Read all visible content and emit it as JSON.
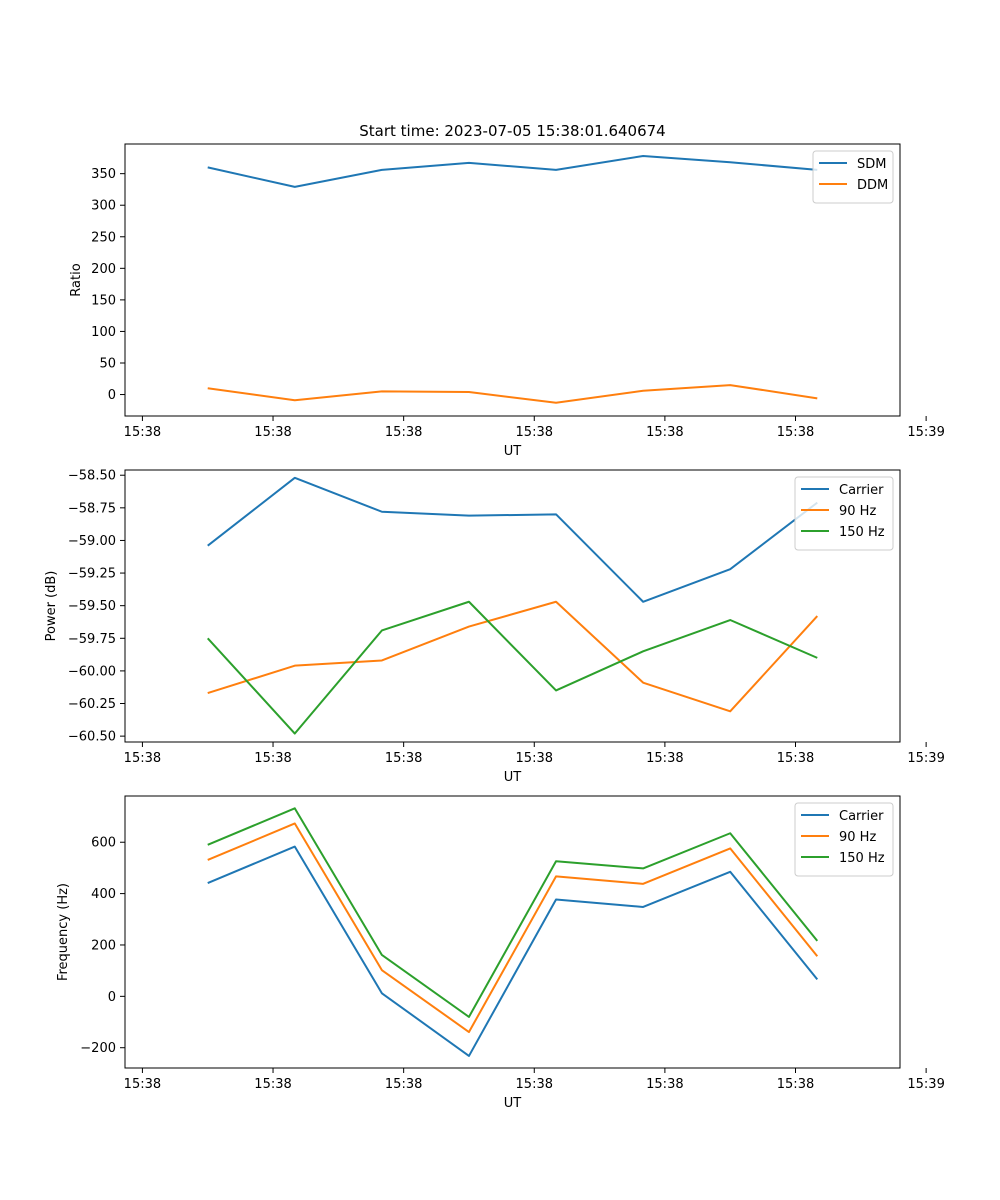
{
  "figure_title": "Start time: 2023-07-05 15:38:01.640674",
  "chart_data": [
    {
      "type": "line",
      "xlabel": "UT",
      "ylabel": "Ratio",
      "x_tick_labels": [
        "15:38",
        "15:38",
        "15:38",
        "15:38",
        "15:38",
        "15:38",
        "15:39"
      ],
      "y_ticks": [
        0,
        50,
        100,
        150,
        200,
        250,
        300,
        350
      ],
      "y_tick_labels": [
        "0",
        "50",
        "100",
        "150",
        "200",
        "250",
        "300",
        "350"
      ],
      "ylim": [
        -34,
        397
      ],
      "x": [
        1,
        2,
        3,
        4,
        5,
        6,
        7,
        8
      ],
      "xlim": [
        0.05,
        8.95
      ],
      "x_tick_positions": [
        0.25,
        1.75,
        3.25,
        4.75,
        6.25,
        7.75,
        9.25
      ],
      "legend_loc": "upper right",
      "series": [
        {
          "name": "SDM",
          "color": "#1f77b4",
          "values": [
            360,
            329,
            356,
            367,
            356,
            378,
            368,
            356
          ]
        },
        {
          "name": "DDM",
          "color": "#ff7f0e",
          "values": [
            10,
            -9,
            5,
            4,
            -13,
            6,
            15,
            -6
          ]
        }
      ]
    },
    {
      "type": "line",
      "xlabel": "UT",
      "ylabel": "Power (dB)",
      "x_tick_labels": [
        "15:38",
        "15:38",
        "15:38",
        "15:38",
        "15:38",
        "15:38",
        "15:39"
      ],
      "y_ticks": [
        -60.5,
        -60.25,
        -60.0,
        -59.75,
        -59.5,
        -59.25,
        -59.0,
        -58.75,
        -58.5
      ],
      "y_tick_labels": [
        "−60.50",
        "−60.25",
        "−60.00",
        "−59.75",
        "−59.50",
        "−59.25",
        "−59.00",
        "−58.75",
        "−58.50"
      ],
      "ylim": [
        -60.545,
        -58.46
      ],
      "x": [
        1,
        2,
        3,
        4,
        5,
        6,
        7,
        8
      ],
      "xlim": [
        0.05,
        8.95
      ],
      "x_tick_positions": [
        0.25,
        1.75,
        3.25,
        4.75,
        6.25,
        7.75,
        9.25
      ],
      "legend_loc": "upper right",
      "series": [
        {
          "name": "Carrier",
          "color": "#1f77b4",
          "values": [
            -59.04,
            -58.52,
            -58.78,
            -58.81,
            -58.8,
            -59.47,
            -59.22,
            -58.71
          ]
        },
        {
          "name": "90 Hz",
          "color": "#ff7f0e",
          "values": [
            -60.17,
            -59.96,
            -59.92,
            -59.66,
            -59.47,
            -60.09,
            -60.31,
            -59.58
          ]
        },
        {
          "name": "150 Hz",
          "color": "#2ca02c",
          "values": [
            -59.75,
            -60.48,
            -59.69,
            -59.47,
            -60.15,
            -59.85,
            -59.61,
            -59.9
          ]
        }
      ]
    },
    {
      "type": "line",
      "xlabel": "UT",
      "ylabel": "Frequency (Hz)",
      "x_tick_labels": [
        "15:38",
        "15:38",
        "15:38",
        "15:38",
        "15:38",
        "15:38",
        "15:39"
      ],
      "y_ticks": [
        -200,
        0,
        200,
        400,
        600
      ],
      "y_tick_labels": [
        "−200",
        "0",
        "200",
        "400",
        "600"
      ],
      "ylim": [
        -279,
        780
      ],
      "x": [
        1,
        2,
        3,
        4,
        5,
        6,
        7,
        8
      ],
      "xlim": [
        0.05,
        8.95
      ],
      "x_tick_positions": [
        0.25,
        1.75,
        3.25,
        4.75,
        6.25,
        7.75,
        9.25
      ],
      "legend_loc": "upper right",
      "series": [
        {
          "name": "Carrier",
          "color": "#1f77b4",
          "values": [
            441,
            583,
            12,
            -232,
            377,
            348,
            485,
            66
          ]
        },
        {
          "name": "90 Hz",
          "color": "#ff7f0e",
          "values": [
            531,
            673,
            102,
            -139,
            467,
            438,
            576,
            156
          ]
        },
        {
          "name": "150 Hz",
          "color": "#2ca02c",
          "values": [
            590,
            732,
            161,
            -80,
            526,
            498,
            635,
            216
          ]
        }
      ]
    }
  ]
}
